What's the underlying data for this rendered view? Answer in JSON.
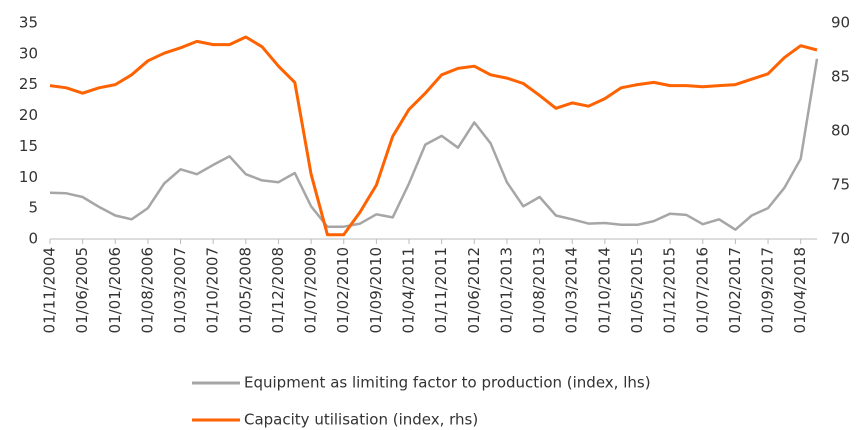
{
  "chart_data": {
    "type": "line",
    "categories": [
      "01/11/2004",
      null,
      "01/06/2005",
      null,
      "01/01/2006",
      null,
      "01/08/2006",
      null,
      "01/03/2007",
      null,
      "01/10/2007",
      null,
      "01/05/2008",
      null,
      "01/12/2008",
      null,
      "01/07/2009",
      null,
      "01/02/2010",
      null,
      "01/09/2010",
      null,
      "01/04/2011",
      null,
      "01/11/2011",
      null,
      "01/06/2012",
      null,
      "01/01/2013",
      null,
      "01/08/2013",
      null,
      "01/03/2014",
      null,
      "01/10/2014",
      null,
      "01/05/2015",
      null,
      "01/12/2015",
      null,
      "01/07/2016",
      null,
      "01/02/2017",
      null,
      "01/09/2017",
      null,
      "01/04/2018",
      null
    ],
    "series": [
      {
        "name": "Equipment as limiting factor to production (index, lhs)",
        "color": "#a6a6a6",
        "axis": "y",
        "values": [
          7.5,
          7.4,
          6.8,
          5.2,
          3.8,
          3.2,
          5.0,
          9.0,
          11.3,
          10.5,
          12.0,
          13.4,
          10.5,
          9.5,
          9.2,
          10.7,
          5.3,
          2.0,
          2.0,
          2.5,
          4.0,
          3.5,
          9.0,
          15.3,
          16.7,
          14.8,
          18.9,
          15.5,
          9.2,
          5.3,
          6.8,
          3.8,
          3.2,
          2.5,
          2.6,
          2.3,
          2.3,
          2.9,
          4.1,
          3.9,
          2.4,
          3.2,
          1.5,
          3.8,
          5.0,
          8.3,
          13.0,
          29.2
        ]
      },
      {
        "name": "Capacity utilisation (index, rhs)",
        "color": "#ff6200",
        "axis": "y2",
        "values": [
          84.2,
          84.0,
          83.5,
          84.0,
          84.3,
          85.2,
          86.5,
          87.2,
          87.7,
          88.3,
          88.0,
          88.0,
          88.7,
          87.8,
          86.0,
          84.5,
          76.0,
          70.4,
          70.4,
          72.5,
          75.0,
          79.5,
          82.0,
          83.5,
          85.2,
          85.8,
          86.0,
          85.2,
          84.9,
          84.4,
          83.3,
          82.1,
          82.6,
          82.3,
          83.0,
          84.0,
          84.3,
          84.5,
          84.2,
          84.2,
          84.1,
          84.2,
          84.3,
          84.8,
          85.3,
          86.8,
          87.9,
          87.5
        ]
      }
    ],
    "ylim": [
      0,
      35
    ],
    "yticks": [
      0,
      5,
      10,
      15,
      20,
      25,
      30,
      35
    ],
    "y2lim": [
      70,
      90
    ],
    "y2ticks": [
      70,
      75,
      80,
      85,
      90
    ],
    "grid": false,
    "legend": "bottom"
  }
}
